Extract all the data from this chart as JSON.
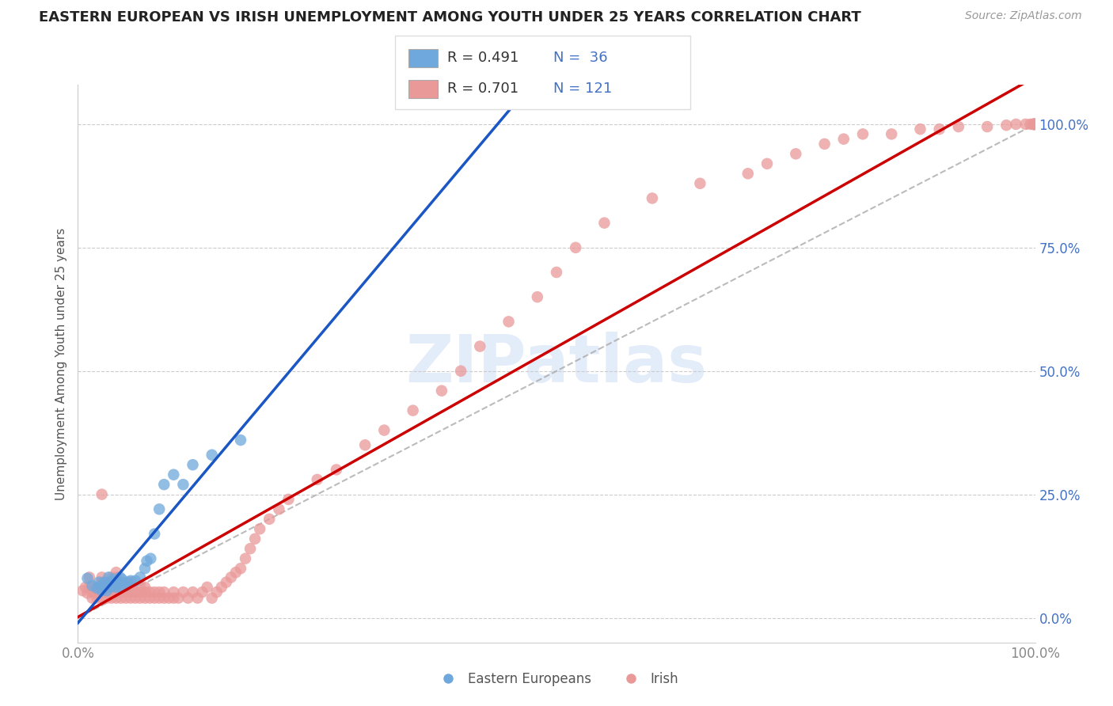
{
  "title": "EASTERN EUROPEAN VS IRISH UNEMPLOYMENT AMONG YOUTH UNDER 25 YEARS CORRELATION CHART",
  "source": "Source: ZipAtlas.com",
  "ylabel": "Unemployment Among Youth under 25 years",
  "xtick_labels": [
    "0.0%",
    "100.0%"
  ],
  "xlim": [
    0,
    1
  ],
  "ylim": [
    -0.05,
    1.08
  ],
  "yticks": [
    0,
    0.25,
    0.5,
    0.75,
    1.0
  ],
  "ytick_labels": [
    "0.0%",
    "25.0%",
    "50.0%",
    "75.0%",
    "100.0%"
  ],
  "legend_R_blue": "R = 0.491",
  "legend_N_blue": "N =  36",
  "legend_R_pink": "R = 0.701",
  "legend_N_pink": "N = 121",
  "legend_label_blue": "Eastern Europeans",
  "legend_label_pink": "Irish",
  "blue_color": "#6fa8dc",
  "pink_color": "#ea9999",
  "blue_line_color": "#1a56c4",
  "pink_line_color": "#cc0000",
  "dashed_line_color": "#aaaaaa",
  "watermark": "ZIPatlas",
  "background_color": "#ffffff",
  "title_color": "#222222",
  "title_fontsize": 13,
  "axis_label_color": "#555555",
  "ytick_color": "#4472c4",
  "xtick_color": "#888888",
  "blue_scatter_x": [
    0.01,
    0.015,
    0.02,
    0.022,
    0.025,
    0.025,
    0.028,
    0.03,
    0.03,
    0.032,
    0.034,
    0.035,
    0.035,
    0.037,
    0.04,
    0.04,
    0.042,
    0.044,
    0.045,
    0.046,
    0.05,
    0.052,
    0.055,
    0.06,
    0.065,
    0.07,
    0.072,
    0.076,
    0.08,
    0.085,
    0.09,
    0.1,
    0.11,
    0.12,
    0.14,
    0.17
  ],
  "blue_scatter_y": [
    0.08,
    0.065,
    0.06,
    0.072,
    0.055,
    0.065,
    0.072,
    0.055,
    0.068,
    0.082,
    0.062,
    0.068,
    0.074,
    0.078,
    0.062,
    0.068,
    0.072,
    0.082,
    0.062,
    0.078,
    0.065,
    0.072,
    0.075,
    0.075,
    0.082,
    0.1,
    0.115,
    0.12,
    0.17,
    0.22,
    0.27,
    0.29,
    0.27,
    0.31,
    0.33,
    0.36
  ],
  "pink_scatter_x": [
    0.005,
    0.008,
    0.01,
    0.012,
    0.012,
    0.015,
    0.015,
    0.015,
    0.018,
    0.02,
    0.02,
    0.022,
    0.025,
    0.025,
    0.025,
    0.025,
    0.025,
    0.025,
    0.03,
    0.03,
    0.03,
    0.03,
    0.035,
    0.035,
    0.035,
    0.035,
    0.035,
    0.04,
    0.04,
    0.04,
    0.04,
    0.04,
    0.04,
    0.045,
    0.045,
    0.045,
    0.045,
    0.05,
    0.05,
    0.05,
    0.055,
    0.055,
    0.055,
    0.055,
    0.06,
    0.06,
    0.065,
    0.065,
    0.065,
    0.07,
    0.07,
    0.07,
    0.075,
    0.075,
    0.08,
    0.08,
    0.085,
    0.085,
    0.09,
    0.09,
    0.095,
    0.1,
    0.1,
    0.105,
    0.11,
    0.115,
    0.12,
    0.125,
    0.13,
    0.135,
    0.14,
    0.145,
    0.15,
    0.155,
    0.16,
    0.165,
    0.17,
    0.175,
    0.18,
    0.185,
    0.19,
    0.2,
    0.21,
    0.22,
    0.25,
    0.27,
    0.3,
    0.32,
    0.35,
    0.38,
    0.4,
    0.42,
    0.45,
    0.48,
    0.5,
    0.52,
    0.55,
    0.6,
    0.65,
    0.7,
    0.72,
    0.75,
    0.78,
    0.8,
    0.82,
    0.85,
    0.88,
    0.9,
    0.92,
    0.95,
    0.97,
    0.98,
    0.99,
    0.995,
    0.998,
    0.999,
    0.999,
    0.999,
    0.999,
    0.999,
    0.999
  ],
  "pink_scatter_y": [
    0.055,
    0.062,
    0.05,
    0.082,
    0.062,
    0.04,
    0.052,
    0.062,
    0.052,
    0.04,
    0.052,
    0.062,
    0.04,
    0.052,
    0.062,
    0.072,
    0.082,
    0.25,
    0.04,
    0.052,
    0.062,
    0.072,
    0.04,
    0.052,
    0.062,
    0.072,
    0.082,
    0.04,
    0.052,
    0.062,
    0.072,
    0.082,
    0.092,
    0.04,
    0.052,
    0.062,
    0.072,
    0.04,
    0.052,
    0.062,
    0.04,
    0.052,
    0.062,
    0.072,
    0.04,
    0.052,
    0.04,
    0.052,
    0.062,
    0.04,
    0.052,
    0.062,
    0.04,
    0.052,
    0.04,
    0.052,
    0.04,
    0.052,
    0.04,
    0.052,
    0.04,
    0.04,
    0.052,
    0.04,
    0.052,
    0.04,
    0.052,
    0.04,
    0.052,
    0.062,
    0.04,
    0.052,
    0.062,
    0.072,
    0.082,
    0.092,
    0.1,
    0.12,
    0.14,
    0.16,
    0.18,
    0.2,
    0.22,
    0.24,
    0.28,
    0.3,
    0.35,
    0.38,
    0.42,
    0.46,
    0.5,
    0.55,
    0.6,
    0.65,
    0.7,
    0.75,
    0.8,
    0.85,
    0.88,
    0.9,
    0.92,
    0.94,
    0.96,
    0.97,
    0.98,
    0.98,
    0.99,
    0.99,
    0.995,
    0.995,
    0.998,
    1.0,
    1.0,
    1.0,
    1.0,
    1.0,
    1.0,
    1.0,
    1.0,
    1.0,
    1.0
  ]
}
